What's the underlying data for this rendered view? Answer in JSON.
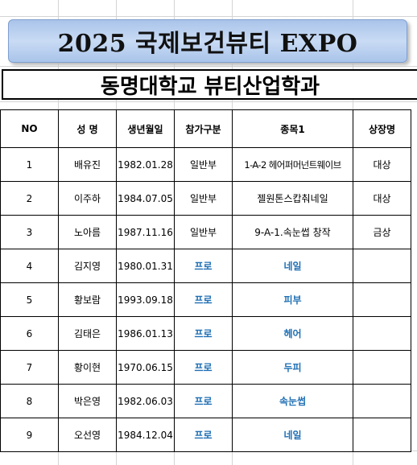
{
  "title": "2025 국제보건뷰티 EXPO",
  "subtitle": "동명대학교 뷰티산업학과",
  "table": {
    "headers": [
      "NO",
      "성 명",
      "생년월일",
      "참가구분",
      "종목1",
      "상장명"
    ],
    "rows": [
      {
        "no": "1",
        "name": "배유진",
        "birth": "1982.01.28",
        "division": "일반부",
        "event": "1-A-2 헤어퍼머넌트웨이브",
        "award": "대상"
      },
      {
        "no": "2",
        "name": "이주하",
        "birth": "1984.07.05",
        "division": "일반부",
        "event": "젤원톤스캅춰네일",
        "award": "대상"
      },
      {
        "no": "3",
        "name": "노아름",
        "birth": "1987.11.16",
        "division": "일반부",
        "event": "9-A-1.속눈썹 창작",
        "award": "금상"
      },
      {
        "no": "4",
        "name": "김지영",
        "birth": "1980.01.31",
        "division": "프로",
        "event": "네일",
        "award": ""
      },
      {
        "no": "5",
        "name": "황보람",
        "birth": "1993.09.18",
        "division": "프로",
        "event": "피부",
        "award": ""
      },
      {
        "no": "6",
        "name": "김태은",
        "birth": "1986.01.13",
        "division": "프로",
        "event": "헤어",
        "award": ""
      },
      {
        "no": "7",
        "name": "황이현",
        "birth": "1970.06.15",
        "division": "프로",
        "event": "두피",
        "award": ""
      },
      {
        "no": "8",
        "name": "박은영",
        "birth": "1982.06.03",
        "division": "프로",
        "event": "속눈썹",
        "award": ""
      },
      {
        "no": "9",
        "name": "오선영",
        "birth": "1984.12.04",
        "division": "프로",
        "event": "네일",
        "award": ""
      }
    ]
  },
  "colors": {
    "banner": "#b9d0f0",
    "pro_text": "#1f6fb4"
  }
}
